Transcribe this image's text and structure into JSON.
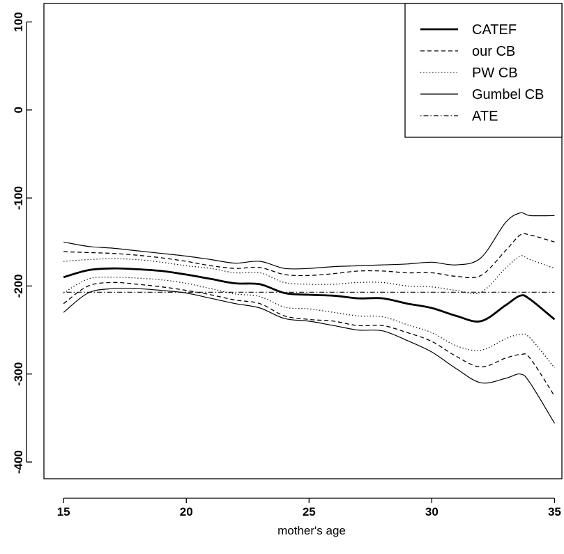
{
  "chart_data": {
    "type": "line",
    "title": "",
    "xlabel": "mother's age",
    "ylabel": "",
    "xlim": [
      14.2,
      35.3
    ],
    "ylim": [
      -419,
      121
    ],
    "x_ticks": [
      15,
      20,
      25,
      30,
      35
    ],
    "y_ticks": [
      100,
      0,
      -100,
      -200,
      -300,
      -400
    ],
    "x_tick_labels": [
      "15",
      "20",
      "25",
      "30",
      "35"
    ],
    "y_tick_labels": [
      "100",
      "0",
      "-100",
      "-200",
      "-300",
      "-400"
    ],
    "grid": false,
    "legend_position": "top-right",
    "x": [
      15,
      16,
      17,
      18,
      19,
      20,
      21,
      22,
      23,
      24,
      25,
      26,
      27,
      28,
      29,
      30,
      31,
      32,
      33,
      33.6,
      34,
      35
    ],
    "series": [
      {
        "name": "CATEF",
        "style": "thick-solid",
        "values": [
          -190,
          -182,
          -180,
          -181,
          -183,
          -187,
          -192,
          -197,
          -198,
          -208,
          -210,
          -211,
          -214,
          -214,
          -220,
          -225,
          -234,
          -240,
          -222,
          -211,
          -215,
          -238
        ]
      },
      {
        "name": "our CB",
        "style": "dashed",
        "role": "upper",
        "values": [
          -161,
          -162,
          -163,
          -165,
          -168,
          -172,
          -177,
          -180,
          -179,
          -187,
          -188,
          -186,
          -183,
          -183,
          -185,
          -185,
          -189,
          -188,
          -160,
          -142,
          -142,
          -150
        ]
      },
      {
        "name": "our CB",
        "style": "dashed",
        "role": "lower",
        "values": [
          -220,
          -200,
          -196,
          -198,
          -201,
          -205,
          -210,
          -216,
          -220,
          -234,
          -238,
          -240,
          -245,
          -245,
          -253,
          -263,
          -280,
          -292,
          -282,
          -278,
          -282,
          -325
        ]
      },
      {
        "name": "PW CB",
        "style": "dotted",
        "role": "upper",
        "values": [
          -172,
          -170,
          -169,
          -170,
          -173,
          -177,
          -180,
          -185,
          -185,
          -196,
          -198,
          -198,
          -196,
          -196,
          -200,
          -201,
          -205,
          -207,
          -180,
          -166,
          -170,
          -180
        ]
      },
      {
        "name": "PW CB",
        "style": "dotted",
        "role": "lower",
        "values": [
          -208,
          -192,
          -190,
          -191,
          -193,
          -197,
          -203,
          -209,
          -212,
          -224,
          -226,
          -230,
          -234,
          -235,
          -244,
          -253,
          -268,
          -273,
          -260,
          -255,
          -259,
          -293
        ]
      },
      {
        "name": "Gumbel CB",
        "style": "thin-solid",
        "role": "upper",
        "values": [
          -150,
          -155,
          -157,
          -160,
          -163,
          -166,
          -170,
          -174,
          -172,
          -180,
          -180,
          -178,
          -177,
          -176,
          -175,
          -173,
          -176,
          -168,
          -128,
          -117,
          -120,
          -120
        ]
      },
      {
        "name": "Gumbel CB",
        "style": "thin-solid",
        "role": "lower",
        "values": [
          -230,
          -208,
          -203,
          -203,
          -205,
          -208,
          -214,
          -220,
          -225,
          -237,
          -240,
          -245,
          -250,
          -251,
          -262,
          -275,
          -294,
          -310,
          -305,
          -300,
          -310,
          -356
        ]
      },
      {
        "name": "ATE",
        "style": "dash-dot",
        "values": [
          -207,
          -207,
          -207,
          -207,
          -207,
          -207,
          -207,
          -207,
          -207,
          -207,
          -207,
          -207,
          -207,
          -207,
          -207,
          -207,
          -207,
          -207,
          -207,
          -207,
          -207,
          -207
        ]
      }
    ],
    "legend": [
      {
        "label": "CATEF",
        "style": "thick-solid"
      },
      {
        "label": "our CB",
        "style": "dashed"
      },
      {
        "label": "PW CB",
        "style": "dotted"
      },
      {
        "label": "Gumbel CB",
        "style": "thin-solid"
      },
      {
        "label": "ATE",
        "style": "dash-dot"
      }
    ],
    "colors": {
      "line": "#000000",
      "background": "#ffffff"
    }
  }
}
